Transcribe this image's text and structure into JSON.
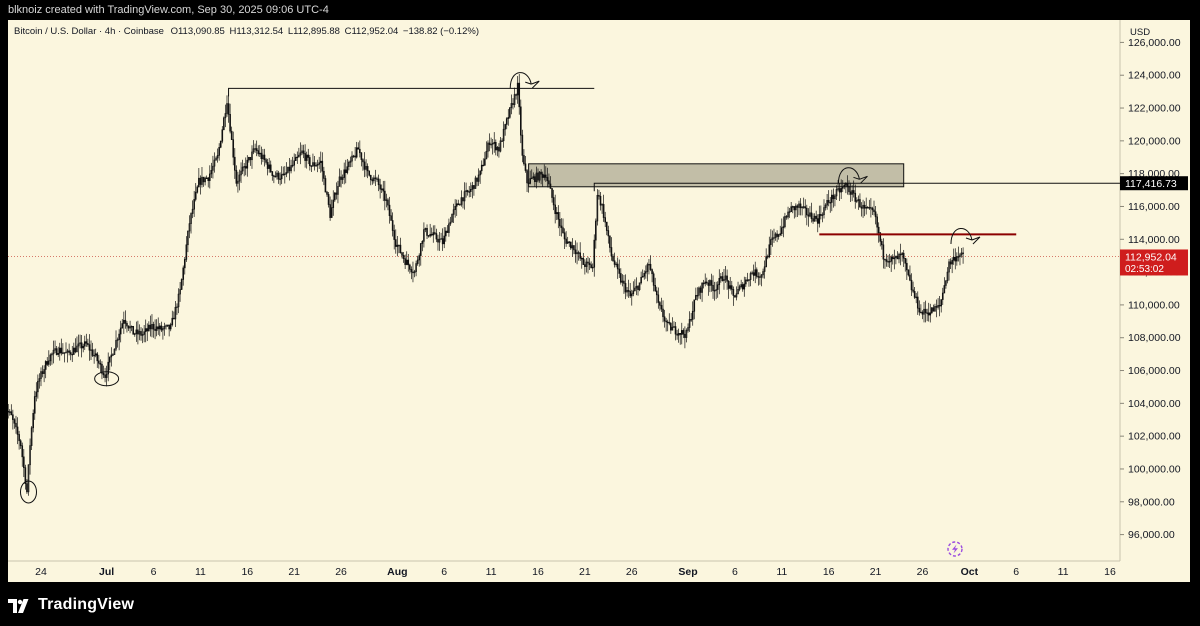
{
  "header": {
    "credit": "blknoiz created with TradingView.com, Sep 30, 2025 09:06 UTC-4"
  },
  "legend": {
    "symbol": "Bitcoin / U.S. Dollar · 4h · Coinbase",
    "open": "O113,090.85",
    "high": "H113,312.54",
    "low": "L112,895.88",
    "close": "C112,952.04",
    "change": "−138.82 (−0.12%)"
  },
  "price_scale": {
    "currency": "USD"
  },
  "footer": {
    "brand": "TradingView"
  },
  "colors": {
    "background": "#fbf6de",
    "candle": "#111111",
    "resistance_line": "#8b0000",
    "price_label_bg": "#cf1d1d",
    "level_label_bg": "#000000",
    "zone_fill": "#b7b49d"
  },
  "icons": [
    "tradingview-logo-icon",
    "lightning-icon"
  ],
  "chart_data": {
    "type": "candlestick",
    "timeframe": "4h",
    "ylim": [
      95000,
      127000
    ],
    "y_ticks": [
      96000,
      98000,
      100000,
      102000,
      104000,
      106000,
      108000,
      110000,
      112000,
      114000,
      116000,
      118000,
      120000,
      122000,
      124000,
      126000
    ],
    "y_tick_labels": [
      "96,000.00",
      "98,000.00",
      "100,000.00",
      "102,000.00",
      "104,000.00",
      "106,000.00",
      "108,000.00",
      "110,000.00",
      "112,000.00",
      "114,000.00",
      "116,000.00",
      "118,000.00",
      "120,000.00",
      "122,000.00",
      "124,000.00",
      "126,000.00"
    ],
    "x_ticks": [
      {
        "date": "2025-06-24",
        "label": "24",
        "bold": false
      },
      {
        "date": "2025-07-01",
        "label": "Jul",
        "bold": true
      },
      {
        "date": "2025-07-06",
        "label": "6",
        "bold": false
      },
      {
        "date": "2025-07-11",
        "label": "11",
        "bold": false
      },
      {
        "date": "2025-07-16",
        "label": "16",
        "bold": false
      },
      {
        "date": "2025-07-21",
        "label": "21",
        "bold": false
      },
      {
        "date": "2025-07-26",
        "label": "26",
        "bold": false
      },
      {
        "date": "2025-08-01",
        "label": "Aug",
        "bold": true
      },
      {
        "date": "2025-08-06",
        "label": "6",
        "bold": false
      },
      {
        "date": "2025-08-11",
        "label": "11",
        "bold": false
      },
      {
        "date": "2025-08-16",
        "label": "16",
        "bold": false
      },
      {
        "date": "2025-08-21",
        "label": "21",
        "bold": false
      },
      {
        "date": "2025-08-26",
        "label": "26",
        "bold": false
      },
      {
        "date": "2025-09-01",
        "label": "Sep",
        "bold": true
      },
      {
        "date": "2025-09-06",
        "label": "6",
        "bold": false
      },
      {
        "date": "2025-09-11",
        "label": "11",
        "bold": false
      },
      {
        "date": "2025-09-16",
        "label": "16",
        "bold": false
      },
      {
        "date": "2025-09-21",
        "label": "21",
        "bold": false
      },
      {
        "date": "2025-09-26",
        "label": "26",
        "bold": false
      },
      {
        "date": "2025-10-01",
        "label": "Oct",
        "bold": true
      },
      {
        "date": "2025-10-06",
        "label": "6",
        "bold": false
      },
      {
        "date": "2025-10-11",
        "label": "11",
        "bold": false
      },
      {
        "date": "2025-10-16",
        "label": "16",
        "bold": false
      }
    ],
    "price_path": [
      [
        "2025-06-20",
        104000
      ],
      [
        "2025-06-21",
        103200
      ],
      [
        "2025-06-22",
        101500
      ],
      [
        "2025-06-22T16",
        98600
      ],
      [
        "2025-06-23",
        101500
      ],
      [
        "2025-06-23T12",
        104500
      ],
      [
        "2025-06-24",
        105500
      ],
      [
        "2025-06-25",
        106800
      ],
      [
        "2025-06-26",
        107300
      ],
      [
        "2025-06-27",
        107000
      ],
      [
        "2025-06-28",
        107400
      ],
      [
        "2025-06-29",
        107600
      ],
      [
        "2025-06-30",
        106800
      ],
      [
        "2025-07-01",
        105700
      ],
      [
        "2025-07-02",
        107500
      ],
      [
        "2025-07-03",
        109200
      ],
      [
        "2025-07-04",
        108300
      ],
      [
        "2025-07-05",
        108200
      ],
      [
        "2025-07-06",
        108700
      ],
      [
        "2025-07-07",
        108500
      ],
      [
        "2025-07-08",
        108600
      ],
      [
        "2025-07-09",
        110800
      ],
      [
        "2025-07-10",
        115000
      ],
      [
        "2025-07-11",
        117500
      ],
      [
        "2025-07-12",
        117800
      ],
      [
        "2025-07-13",
        119000
      ],
      [
        "2025-07-14",
        122500
      ],
      [
        "2025-07-15",
        117500
      ],
      [
        "2025-07-16",
        118500
      ],
      [
        "2025-07-17",
        119500
      ],
      [
        "2025-07-18",
        118800
      ],
      [
        "2025-07-19",
        117900
      ],
      [
        "2025-07-20",
        117800
      ],
      [
        "2025-07-21",
        118500
      ],
      [
        "2025-07-22",
        119300
      ],
      [
        "2025-07-23",
        118500
      ],
      [
        "2025-07-24",
        118700
      ],
      [
        "2025-07-25",
        115500
      ],
      [
        "2025-07-26",
        117700
      ],
      [
        "2025-07-27",
        118500
      ],
      [
        "2025-07-28",
        119500
      ],
      [
        "2025-07-29",
        118000
      ],
      [
        "2025-07-30",
        117500
      ],
      [
        "2025-07-31",
        116300
      ],
      [
        "2025-08-01",
        113800
      ],
      [
        "2025-08-02",
        112700
      ],
      [
        "2025-08-03",
        112000
      ],
      [
        "2025-08-04",
        114500
      ],
      [
        "2025-08-05",
        114200
      ],
      [
        "2025-08-06",
        113800
      ],
      [
        "2025-08-07",
        115500
      ],
      [
        "2025-08-08",
        116500
      ],
      [
        "2025-08-09",
        117000
      ],
      [
        "2025-08-10",
        118000
      ],
      [
        "2025-08-11",
        120000
      ],
      [
        "2025-08-12",
        119500
      ],
      [
        "2025-08-13",
        121500
      ],
      [
        "2025-08-14",
        123300
      ],
      [
        "2025-08-14T12",
        119000
      ],
      [
        "2025-08-15",
        117500
      ],
      [
        "2025-08-16",
        117800
      ],
      [
        "2025-08-17",
        118000
      ],
      [
        "2025-08-18",
        115800
      ],
      [
        "2025-08-19",
        114000
      ],
      [
        "2025-08-20",
        113500
      ],
      [
        "2025-08-21",
        112500
      ],
      [
        "2025-08-22",
        112300
      ],
      [
        "2025-08-22T12",
        116800
      ],
      [
        "2025-08-23",
        116000
      ],
      [
        "2025-08-24",
        113000
      ],
      [
        "2025-08-25",
        111500
      ],
      [
        "2025-08-26",
        110500
      ],
      [
        "2025-08-27",
        111300
      ],
      [
        "2025-08-28",
        112500
      ],
      [
        "2025-08-29",
        110000
      ],
      [
        "2025-08-30",
        108700
      ],
      [
        "2025-08-31",
        108400
      ],
      [
        "2025-09-01",
        108200
      ],
      [
        "2025-09-02",
        110500
      ],
      [
        "2025-09-03",
        111500
      ],
      [
        "2025-09-04",
        111000
      ],
      [
        "2025-09-05",
        111800
      ],
      [
        "2025-09-06",
        110500
      ],
      [
        "2025-09-07",
        111200
      ],
      [
        "2025-09-08",
        112000
      ],
      [
        "2025-09-09",
        111800
      ],
      [
        "2025-09-10",
        113800
      ],
      [
        "2025-09-11",
        114500
      ],
      [
        "2025-09-12",
        115800
      ],
      [
        "2025-09-13",
        116000
      ],
      [
        "2025-09-14",
        115500
      ],
      [
        "2025-09-15",
        115200
      ],
      [
        "2025-09-16",
        116200
      ],
      [
        "2025-09-17",
        116800
      ],
      [
        "2025-09-18",
        117300
      ],
      [
        "2025-09-19",
        116500
      ],
      [
        "2025-09-20",
        115800
      ],
      [
        "2025-09-21",
        115600
      ],
      [
        "2025-09-22",
        113000
      ],
      [
        "2025-09-23",
        112700
      ],
      [
        "2025-09-24",
        113000
      ],
      [
        "2025-09-25",
        111000
      ],
      [
        "2025-09-26",
        109500
      ],
      [
        "2025-09-27",
        109600
      ],
      [
        "2025-09-28",
        109900
      ],
      [
        "2025-09-29",
        112500
      ],
      [
        "2025-09-30",
        113100
      ],
      [
        "2025-09-30T09",
        112952
      ]
    ],
    "annotations": {
      "swing_high_line": {
        "from": "2025-07-14",
        "to": "2025-08-22",
        "price": 123200
      },
      "supply_zone": {
        "from": "2025-08-15",
        "to": "2025-09-24",
        "low": 117200,
        "high": 118600
      },
      "horizontal_ray": {
        "from": "2025-08-22",
        "price": 117416.73
      },
      "resistance_line": {
        "from": "2025-09-15",
        "to": "2025-10-06",
        "price": 114300
      },
      "circles": [
        {
          "date": "2025-06-22T16",
          "price": 98600
        },
        {
          "date": "2025-07-01",
          "price": 105500
        },
        {
          "date": "2025-08-14",
          "price": 123700
        },
        {
          "date": "2025-09-18",
          "price": 117900
        },
        {
          "date": "2025-09-30",
          "price": 114200
        }
      ]
    },
    "price_labels": {
      "level": {
        "price": 117416.73,
        "text": "117,416.73"
      },
      "last": {
        "price": 112952.04,
        "text": "112,952.04",
        "countdown": "02:53:02"
      }
    }
  }
}
